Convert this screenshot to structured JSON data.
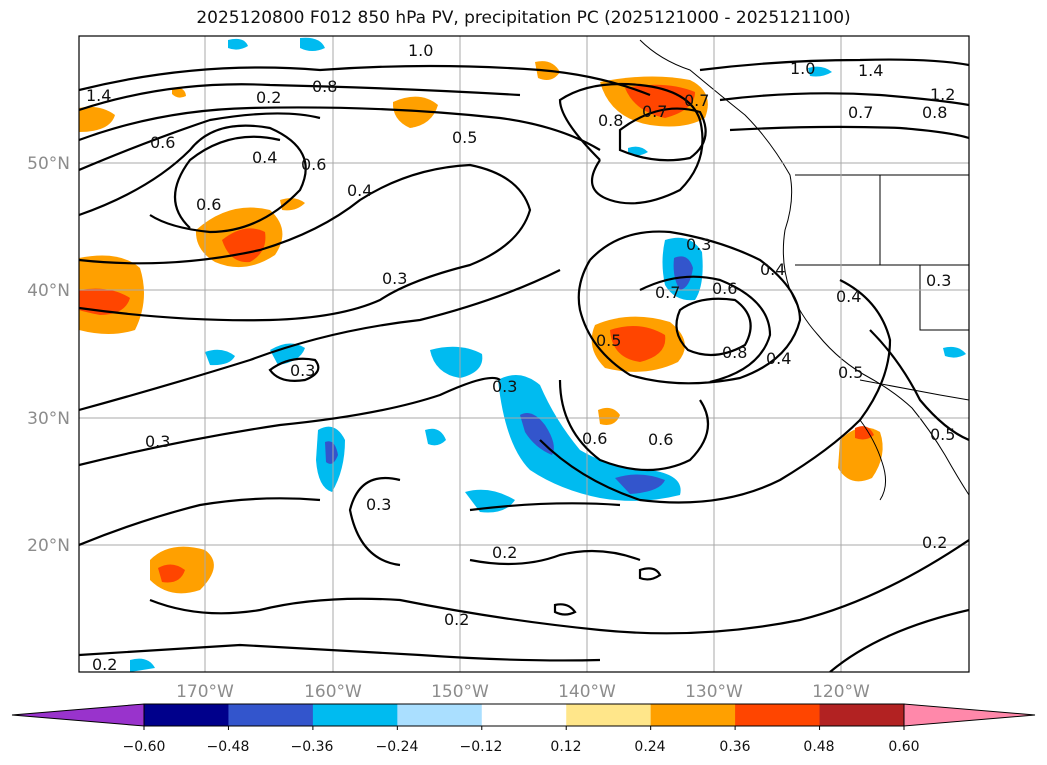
{
  "title": "2025120800 F012 850 hPa PV, precipitation PC (2025121000 - 2025121100)",
  "map": {
    "lat_labels": [
      "50°N",
      "40°N",
      "30°N",
      "20°N"
    ],
    "lon_labels": [
      "170°W",
      "160°W",
      "150°W",
      "140°W",
      "130°W",
      "120°W"
    ],
    "pv_contour_labels": [
      "1.4",
      "0.6",
      "0.2",
      "0.8",
      "1.0",
      "0.4",
      "0.6",
      "0.4",
      "0.5",
      "0.8",
      "0.7",
      "0.7",
      "1.0",
      "1.4",
      "1.2",
      "0.7",
      "0.8",
      "0.6",
      "0.3",
      "0.3",
      "0.7",
      "0.6",
      "0.4",
      "0.4",
      "0.8",
      "0.5",
      "0.4",
      "0.5",
      "0.3",
      "0.3",
      "0.3",
      "0.6",
      "0.6",
      "0.3",
      "0.3",
      "0.2",
      "0.2",
      "0.5",
      "0.2"
    ]
  },
  "colorbar": {
    "tick_labels": [
      "−0.60",
      "−0.48",
      "−0.36",
      "−0.24",
      "−0.12",
      "0.12",
      "0.24",
      "0.36",
      "0.48",
      "0.60"
    ],
    "colors": [
      "#9933cc",
      "#00008b",
      "#3355cc",
      "#00bbf0",
      "#aadfff",
      "#ffffff",
      "#ffe68a",
      "#ffa000",
      "#ff4500",
      "#b22222",
      "#ff88aa"
    ]
  }
}
